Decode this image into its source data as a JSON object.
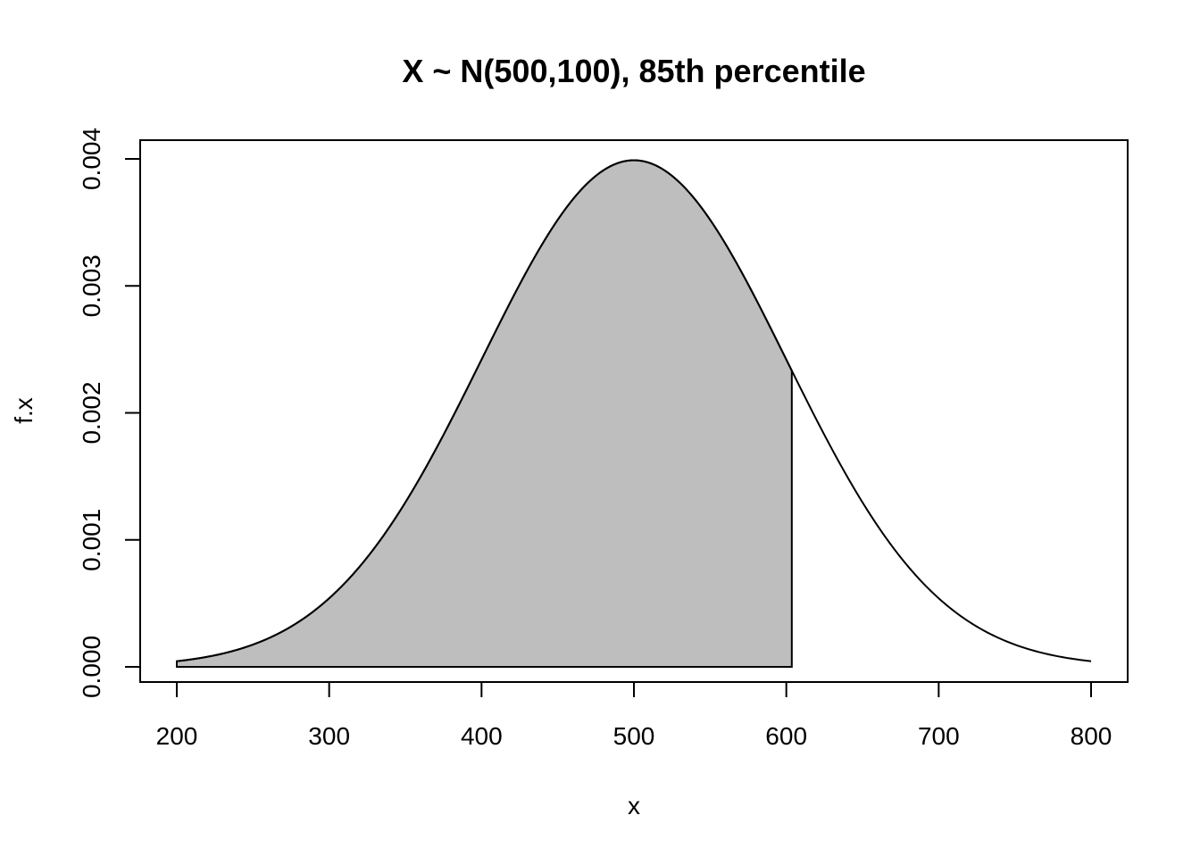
{
  "chart_data": {
    "type": "area",
    "title": "X ~ N(500,100), 85th percentile",
    "xlabel": "x",
    "ylabel": "f.x",
    "distribution": {
      "mean": 500,
      "sd": 100
    },
    "percentile": 0.85,
    "cutoff_x": 603.6,
    "xlim": [
      200,
      800
    ],
    "ylim": [
      0,
      0.004
    ],
    "x_ticks": [
      200,
      300,
      400,
      500,
      600,
      700,
      800
    ],
    "x_tick_labels": [
      "200",
      "300",
      "400",
      "500",
      "600",
      "700",
      "800"
    ],
    "y_ticks": [
      0,
      0.001,
      0.002,
      0.003,
      0.004
    ],
    "y_tick_labels": [
      "0.000",
      "0.001",
      "0.002",
      "0.003",
      "0.004"
    ],
    "curve_points": [
      [
        200,
        4.43e-05
      ],
      [
        250,
        0.0001753
      ],
      [
        300,
        0.00054
      ],
      [
        350,
        0.001295
      ],
      [
        400,
        0.00242
      ],
      [
        450,
        0.003521
      ],
      [
        500,
        0.003989
      ],
      [
        550,
        0.003521
      ],
      [
        600,
        0.00242
      ],
      [
        650,
        0.001295
      ],
      [
        700,
        0.00054
      ],
      [
        750,
        0.0001753
      ],
      [
        800,
        4.43e-05
      ]
    ],
    "shaded_region": {
      "from": 200,
      "to": 603.6,
      "color": "#bebebe"
    },
    "grid": false,
    "legend": "none"
  }
}
